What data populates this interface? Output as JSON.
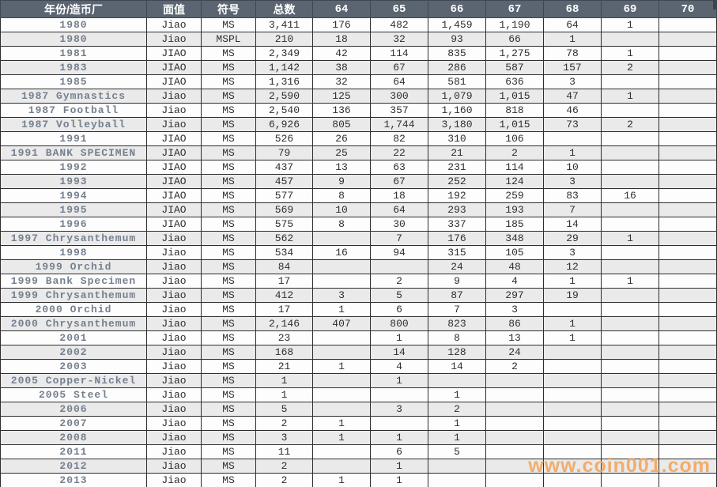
{
  "header": {
    "columns": [
      "年份/造币厂",
      "面值",
      "符号",
      "总数",
      "64",
      "65",
      "66",
      "67",
      "68",
      "69",
      "70"
    ]
  },
  "rows": [
    {
      "name": "1980",
      "denomination": "Jiao",
      "symbol": "MS",
      "total": "3,411",
      "grades": [
        "176",
        "482",
        "1,459",
        "1,190",
        "64",
        "1",
        ""
      ]
    },
    {
      "name": "1980",
      "denomination": "Jiao",
      "symbol": "MSPL",
      "total": "210",
      "grades": [
        "18",
        "32",
        "93",
        "66",
        "1",
        "",
        ""
      ]
    },
    {
      "name": "1981",
      "denomination": "JIAO",
      "symbol": "MS",
      "total": "2,349",
      "grades": [
        "42",
        "114",
        "835",
        "1,275",
        "78",
        "1",
        ""
      ]
    },
    {
      "name": "1983",
      "denomination": "JIAO",
      "symbol": "MS",
      "total": "1,142",
      "grades": [
        "38",
        "67",
        "286",
        "587",
        "157",
        "2",
        ""
      ]
    },
    {
      "name": "1985",
      "denomination": "JIAO",
      "symbol": "MS",
      "total": "1,316",
      "grades": [
        "32",
        "64",
        "581",
        "636",
        "3",
        "",
        ""
      ]
    },
    {
      "name": "1987 Gymnastics",
      "denomination": "Jiao",
      "symbol": "MS",
      "total": "2,590",
      "grades": [
        "125",
        "300",
        "1,079",
        "1,015",
        "47",
        "1",
        ""
      ]
    },
    {
      "name": "1987 Football",
      "denomination": "Jiao",
      "symbol": "MS",
      "total": "2,540",
      "grades": [
        "136",
        "357",
        "1,160",
        "818",
        "46",
        "",
        ""
      ]
    },
    {
      "name": "1987 Volleyball",
      "denomination": "Jiao",
      "symbol": "MS",
      "total": "6,926",
      "grades": [
        "805",
        "1,744",
        "3,180",
        "1,015",
        "73",
        "2",
        ""
      ]
    },
    {
      "name": "1991",
      "denomination": "JIAO",
      "symbol": "MS",
      "total": "526",
      "grades": [
        "26",
        "82",
        "310",
        "106",
        "",
        "",
        ""
      ]
    },
    {
      "name": "1991 BANK SPECIMEN",
      "denomination": "JIAO",
      "symbol": "MS",
      "total": "79",
      "grades": [
        "25",
        "22",
        "21",
        "2",
        "1",
        "",
        ""
      ]
    },
    {
      "name": "1992",
      "denomination": "JIAO",
      "symbol": "MS",
      "total": "437",
      "grades": [
        "13",
        "63",
        "231",
        "114",
        "10",
        "",
        ""
      ]
    },
    {
      "name": "1993",
      "denomination": "JIAO",
      "symbol": "MS",
      "total": "457",
      "grades": [
        "9",
        "67",
        "252",
        "124",
        "3",
        "",
        ""
      ]
    },
    {
      "name": "1994",
      "denomination": "JIAO",
      "symbol": "MS",
      "total": "577",
      "grades": [
        "8",
        "18",
        "192",
        "259",
        "83",
        "16",
        ""
      ]
    },
    {
      "name": "1995",
      "denomination": "JIAO",
      "symbol": "MS",
      "total": "569",
      "grades": [
        "10",
        "64",
        "293",
        "193",
        "7",
        "",
        ""
      ]
    },
    {
      "name": "1996",
      "denomination": "JIAO",
      "symbol": "MS",
      "total": "575",
      "grades": [
        "8",
        "30",
        "337",
        "185",
        "14",
        "",
        ""
      ]
    },
    {
      "name": "1997 Chrysanthemum",
      "denomination": "Jiao",
      "symbol": "MS",
      "total": "562",
      "grades": [
        "",
        "7",
        "176",
        "348",
        "29",
        "1",
        ""
      ]
    },
    {
      "name": "1998",
      "denomination": "Jiao",
      "symbol": "MS",
      "total": "534",
      "grades": [
        "16",
        "94",
        "315",
        "105",
        "3",
        "",
        ""
      ]
    },
    {
      "name": "1999 Orchid",
      "denomination": "Jiao",
      "symbol": "MS",
      "total": "84",
      "grades": [
        "",
        "",
        "24",
        "48",
        "12",
        "",
        ""
      ]
    },
    {
      "name": "1999 Bank Specimen",
      "denomination": "Jiao",
      "symbol": "MS",
      "total": "17",
      "grades": [
        "",
        "2",
        "9",
        "4",
        "1",
        "1",
        ""
      ]
    },
    {
      "name": "1999 Chrysanthemum",
      "denomination": "Jiao",
      "symbol": "MS",
      "total": "412",
      "grades": [
        "3",
        "5",
        "87",
        "297",
        "19",
        "",
        ""
      ]
    },
    {
      "name": "2000 Orchid",
      "denomination": "Jiao",
      "symbol": "MS",
      "total": "17",
      "grades": [
        "1",
        "6",
        "7",
        "3",
        "",
        "",
        ""
      ]
    },
    {
      "name": "2000 Chrysanthemum",
      "denomination": "Jiao",
      "symbol": "MS",
      "total": "2,146",
      "grades": [
        "407",
        "800",
        "823",
        "86",
        "1",
        "",
        ""
      ]
    },
    {
      "name": "2001",
      "denomination": "Jiao",
      "symbol": "MS",
      "total": "23",
      "grades": [
        "",
        "1",
        "8",
        "13",
        "1",
        "",
        ""
      ]
    },
    {
      "name": "2002",
      "denomination": "Jiao",
      "symbol": "MS",
      "total": "168",
      "grades": [
        "",
        "14",
        "128",
        "24",
        "",
        "",
        ""
      ]
    },
    {
      "name": "2003",
      "denomination": "Jiao",
      "symbol": "MS",
      "total": "21",
      "grades": [
        "1",
        "4",
        "14",
        "2",
        "",
        "",
        ""
      ]
    },
    {
      "name": "2005 Copper-Nickel",
      "denomination": "Jiao",
      "symbol": "MS",
      "total": "1",
      "grades": [
        "",
        "1",
        "",
        "",
        "",
        "",
        ""
      ]
    },
    {
      "name": "2005 Steel",
      "denomination": "Jiao",
      "symbol": "MS",
      "total": "1",
      "grades": [
        "",
        "",
        "1",
        "",
        "",
        "",
        ""
      ]
    },
    {
      "name": "2006",
      "denomination": "Jiao",
      "symbol": "MS",
      "total": "5",
      "grades": [
        "",
        "3",
        "2",
        "",
        "",
        "",
        ""
      ]
    },
    {
      "name": "2007",
      "denomination": "Jiao",
      "symbol": "MS",
      "total": "2",
      "grades": [
        "1",
        "",
        "1",
        "",
        "",
        "",
        ""
      ]
    },
    {
      "name": "2008",
      "denomination": "Jiao",
      "symbol": "MS",
      "total": "3",
      "grades": [
        "1",
        "1",
        "1",
        "",
        "",
        "",
        ""
      ]
    },
    {
      "name": "2011",
      "denomination": "Jiao",
      "symbol": "MS",
      "total": "11",
      "grades": [
        "",
        "6",
        "5",
        "",
        "",
        "",
        ""
      ]
    },
    {
      "name": "2012",
      "denomination": "Jiao",
      "symbol": "MS",
      "total": "2",
      "grades": [
        "",
        "1",
        "",
        "",
        "",
        "",
        ""
      ]
    },
    {
      "name": "2013",
      "denomination": "Jiao",
      "symbol": "MS",
      "total": "2",
      "grades": [
        "1",
        "1",
        "",
        "",
        "",
        "",
        ""
      ]
    }
  ],
  "watermark": "www.coin001.com",
  "colors": {
    "header_bg": "#5b6572",
    "header_text": "#ffffff",
    "row_alt_bg": "#eaeaea",
    "year_text": "#75808f",
    "watermark": "#f3a45a"
  }
}
